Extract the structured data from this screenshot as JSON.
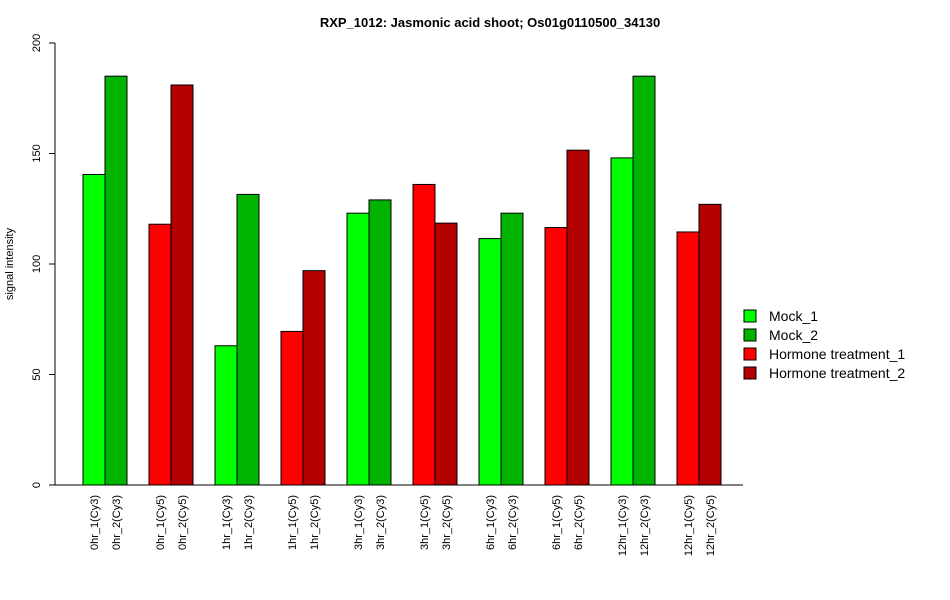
{
  "chart_data": {
    "type": "bar",
    "title": "RXP_1012: Jasmonic acid shoot; Os01g0110500_34130",
    "xlabel": "",
    "ylabel": "signal intensity",
    "ylim": [
      0,
      200
    ],
    "yticks": [
      0,
      50,
      100,
      150,
      200
    ],
    "grid": false,
    "legend_position": "right",
    "categories": [
      "0hr_1(Cy3)",
      "0hr_2(Cy3)",
      "0hr_1(Cy5)",
      "0hr_2(Cy5)",
      "1hr_1(Cy3)",
      "1hr_2(Cy3)",
      "1hr_1(Cy5)",
      "1hr_2(Cy5)",
      "3hr_1(Cy3)",
      "3hr_2(Cy3)",
      "3hr_1(Cy5)",
      "3hr_2(Cy5)",
      "6hr_1(Cy3)",
      "6hr_2(Cy3)",
      "6hr_1(Cy5)",
      "6hr_2(Cy5)",
      "12hr_1(Cy3)",
      "12hr_2(Cy3)",
      "12hr_1(Cy5)",
      "12hr_2(Cy5)"
    ],
    "values": [
      140.5,
      185,
      118,
      181,
      63,
      131.5,
      69.5,
      97,
      123,
      129,
      136,
      118.5,
      111.5,
      123,
      116.5,
      151.5,
      148,
      185,
      114.5,
      127
    ],
    "bar_series": [
      0,
      1,
      2,
      3,
      0,
      1,
      2,
      3,
      0,
      1,
      2,
      3,
      0,
      1,
      2,
      3,
      0,
      1,
      2,
      3
    ],
    "series": [
      {
        "name": "Mock_1",
        "color": "#00ff00"
      },
      {
        "name": "Mock_2",
        "color": "#00b300"
      },
      {
        "name": "Hormone treatment_1",
        "color": "#ff0000"
      },
      {
        "name": "Hormone treatment_2",
        "color": "#b30000"
      }
    ]
  }
}
